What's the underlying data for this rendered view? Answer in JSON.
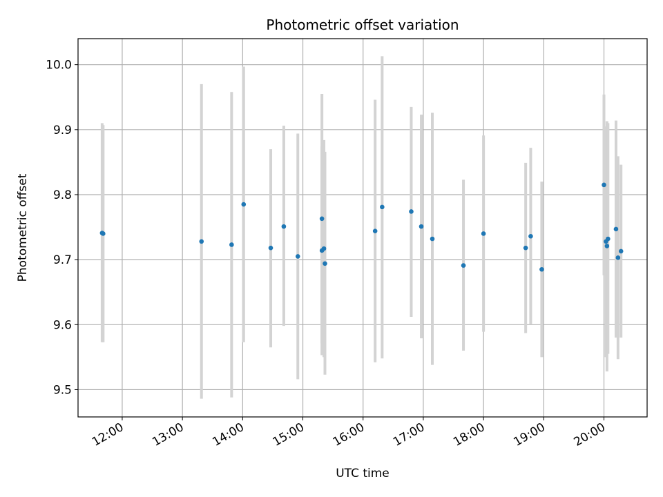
{
  "chart_data": {
    "type": "scatter",
    "title": "Photometric offset variation",
    "xlabel": "UTC time",
    "ylabel": "Photometric offset",
    "x_ticks": [
      "12:00",
      "13:00",
      "14:00",
      "15:00",
      "16:00",
      "17:00",
      "18:00",
      "19:00",
      "20:00"
    ],
    "y_ticks": [
      "9.5",
      "9.6",
      "9.7",
      "9.8",
      "9.9",
      "10.0"
    ],
    "xlim": [
      "11:16",
      "20:43"
    ],
    "ylim": [
      9.458,
      10.04
    ],
    "grid": true,
    "colors": {
      "point": "#1f77b4",
      "errorbar": "#d3d3d3",
      "grid": "#b0b0b0"
    },
    "series": [
      {
        "points": [
          {
            "x": "11:40",
            "y": 9.741,
            "lo": 9.573,
            "hi": 9.91
          },
          {
            "x": "11:41",
            "y": 9.74,
            "lo": 9.573,
            "hi": 9.907
          },
          {
            "x": "13:19",
            "y": 9.728,
            "lo": 9.486,
            "hi": 9.97
          },
          {
            "x": "13:49",
            "y": 9.723,
            "lo": 9.488,
            "hi": 9.958
          },
          {
            "x": "14:01",
            "y": 9.785,
            "lo": 9.573,
            "hi": 9.997
          },
          {
            "x": "14:28",
            "y": 9.718,
            "lo": 9.565,
            "hi": 9.87
          },
          {
            "x": "14:41",
            "y": 9.751,
            "lo": 9.598,
            "hi": 9.906
          },
          {
            "x": "14:55",
            "y": 9.705,
            "lo": 9.516,
            "hi": 9.894
          },
          {
            "x": "15:19",
            "y": 9.763,
            "lo": 9.571,
            "hi": 9.955
          },
          {
            "x": "15:19",
            "y": 9.714,
            "lo": 9.553,
            "hi": 9.875
          },
          {
            "x": "15:21",
            "y": 9.717,
            "lo": 9.55,
            "hi": 9.884
          },
          {
            "x": "15:22",
            "y": 9.694,
            "lo": 9.523,
            "hi": 9.866
          },
          {
            "x": "16:12",
            "y": 9.744,
            "lo": 9.542,
            "hi": 9.946
          },
          {
            "x": "16:19",
            "y": 9.781,
            "lo": 9.548,
            "hi": 10.013
          },
          {
            "x": "16:48",
            "y": 9.774,
            "lo": 9.612,
            "hi": 9.935
          },
          {
            "x": "16:58",
            "y": 9.751,
            "lo": 9.579,
            "hi": 9.923
          },
          {
            "x": "17:09",
            "y": 9.732,
            "lo": 9.538,
            "hi": 9.926
          },
          {
            "x": "17:40",
            "y": 9.691,
            "lo": 9.56,
            "hi": 9.823
          },
          {
            "x": "18:00",
            "y": 9.74,
            "lo": 9.589,
            "hi": 9.891
          },
          {
            "x": "18:42",
            "y": 9.718,
            "lo": 9.587,
            "hi": 9.849
          },
          {
            "x": "18:47",
            "y": 9.736,
            "lo": 9.6,
            "hi": 9.872
          },
          {
            "x": "18:58",
            "y": 9.685,
            "lo": 9.55,
            "hi": 9.82
          },
          {
            "x": "20:00",
            "y": 9.815,
            "lo": 9.676,
            "hi": 9.954
          },
          {
            "x": "20:02",
            "y": 9.728,
            "lo": 9.55,
            "hi": 9.905
          },
          {
            "x": "20:03",
            "y": 9.721,
            "lo": 9.528,
            "hi": 9.913
          },
          {
            "x": "20:04",
            "y": 9.732,
            "lo": 9.555,
            "hi": 9.91
          },
          {
            "x": "20:12",
            "y": 9.747,
            "lo": 9.58,
            "hi": 9.914
          },
          {
            "x": "20:14",
            "y": 9.703,
            "lo": 9.547,
            "hi": 9.859
          },
          {
            "x": "20:17",
            "y": 9.713,
            "lo": 9.58,
            "hi": 9.846
          }
        ]
      }
    ]
  }
}
